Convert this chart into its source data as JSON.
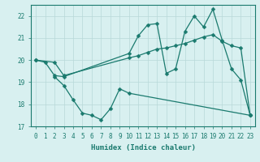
{
  "line1_x": [
    0,
    1,
    2,
    3,
    10,
    11,
    12,
    13,
    14,
    15,
    16,
    17,
    18,
    19,
    20,
    21,
    22,
    23
  ],
  "line1_y": [
    20.0,
    19.9,
    19.3,
    19.25,
    20.3,
    21.1,
    21.6,
    21.65,
    19.4,
    19.6,
    21.3,
    22.0,
    21.5,
    22.3,
    20.9,
    19.6,
    19.1,
    17.5
  ],
  "line2_x": [
    0,
    2,
    3,
    10,
    11,
    12,
    13,
    14,
    15,
    16,
    17,
    18,
    19,
    20,
    21,
    22,
    23
  ],
  "line2_y": [
    20.0,
    19.9,
    19.3,
    20.1,
    20.2,
    20.35,
    20.5,
    20.55,
    20.65,
    20.75,
    20.9,
    21.05,
    21.15,
    20.85,
    20.65,
    20.55,
    17.5
  ],
  "line3_x": [
    2,
    3,
    4,
    5,
    6,
    7,
    8,
    9,
    10,
    23
  ],
  "line3_y": [
    19.25,
    18.85,
    18.2,
    17.6,
    17.5,
    17.3,
    17.8,
    18.7,
    18.5,
    17.5
  ],
  "color": "#1a7a6e",
  "bg_color": "#d8f0f0",
  "grid_color": "#b8d8d8",
  "xlabel": "Humidex (Indice chaleur)",
  "ylim": [
    17.0,
    22.5
  ],
  "xlim": [
    -0.5,
    23.5
  ],
  "yticks": [
    17,
    18,
    19,
    20,
    21,
    22
  ],
  "xticks": [
    0,
    1,
    2,
    3,
    4,
    5,
    6,
    7,
    8,
    9,
    10,
    11,
    12,
    13,
    14,
    15,
    16,
    17,
    18,
    19,
    20,
    21,
    22,
    23
  ]
}
